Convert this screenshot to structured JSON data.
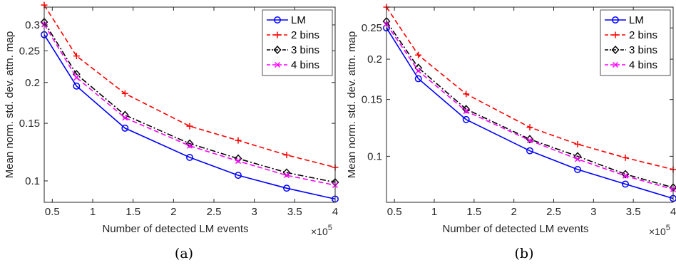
{
  "chart_data": [
    {
      "type": "line",
      "caption": "(a)",
      "xlabel": "Number of detected LM events",
      "ylabel": "Mean norm. std. dev. attn. map",
      "x_multiplier_label": "×10",
      "x_multiplier_exponent": "5",
      "yscale": "log",
      "xlim": [
        0.4,
        4.0
      ],
      "ylim": [
        0.086,
        0.34
      ],
      "xticks": [
        0.5,
        1,
        1.5,
        2,
        2.5,
        3,
        3.5,
        4
      ],
      "xtick_labels": [
        "0.5",
        "1",
        "1.5",
        "2",
        "2.5",
        "3",
        "3.5",
        "4"
      ],
      "yticks": [
        0.1,
        0.15,
        0.2,
        0.25,
        0.3
      ],
      "ytick_labels": [
        "0.1",
        "0.15",
        "0.2",
        "0.25",
        "0.3"
      ],
      "legend_position": "top-right",
      "x": [
        0.4,
        0.8,
        1.4,
        2.2,
        2.8,
        3.4,
        4.0
      ],
      "series": [
        {
          "name": "LM",
          "color": "#0000ff",
          "style": "solid",
          "marker": "circle",
          "values": [
            0.28,
            0.195,
            0.145,
            0.118,
            0.104,
            0.095,
            0.088
          ]
        },
        {
          "name": "2 bins",
          "color": "#ff0000",
          "style": "dashed",
          "marker": "plus",
          "values": [
            0.345,
            0.241,
            0.185,
            0.147,
            0.133,
            0.12,
            0.11
          ]
        },
        {
          "name": "3 bins",
          "color": "#000000",
          "style": "dashdot",
          "marker": "diamond",
          "values": [
            0.306,
            0.212,
            0.159,
            0.13,
            0.117,
            0.106,
            0.099
          ]
        },
        {
          "name": "4 bins",
          "color": "#ff00ff",
          "style": "dashed",
          "marker": "x",
          "values": [
            0.301,
            0.207,
            0.156,
            0.128,
            0.115,
            0.104,
            0.097
          ]
        }
      ]
    },
    {
      "type": "line",
      "caption": "(b)",
      "xlabel": "Number of detected LM events",
      "ylabel": "Mean norm. std. dev. attn. map",
      "x_multiplier_label": "×10",
      "x_multiplier_exponent": "5",
      "yscale": "log",
      "xlim": [
        0.4,
        4.0
      ],
      "ylim": [
        0.072,
        0.29
      ],
      "xticks": [
        0.5,
        1,
        1.5,
        2,
        2.5,
        3,
        3.5,
        4
      ],
      "xtick_labels": [
        "0.5",
        "1",
        "1.5",
        "2",
        "2.5",
        "3",
        "3.5",
        "4"
      ],
      "yticks": [
        0.1,
        0.15,
        0.2,
        0.25
      ],
      "ytick_labels": [
        "0.1",
        "0.15",
        "0.2",
        "0.25"
      ],
      "legend_position": "top-right",
      "x": [
        0.4,
        0.8,
        1.4,
        2.2,
        2.8,
        3.4,
        4.0
      ],
      "series": [
        {
          "name": "LM",
          "color": "#0000ff",
          "style": "solid",
          "marker": "circle",
          "values": [
            0.25,
            0.174,
            0.13,
            0.104,
            0.091,
            0.082,
            0.074
          ]
        },
        {
          "name": "2 bins",
          "color": "#ff0000",
          "style": "dashed",
          "marker": "plus",
          "values": [
            0.29,
            0.206,
            0.156,
            0.123,
            0.109,
            0.099,
            0.091
          ]
        },
        {
          "name": "3 bins",
          "color": "#000000",
          "style": "dashdot",
          "marker": "diamond",
          "values": [
            0.262,
            0.188,
            0.14,
            0.113,
            0.1,
            0.088,
            0.08
          ]
        },
        {
          "name": "4 bins",
          "color": "#ff00ff",
          "style": "dashed",
          "marker": "x",
          "values": [
            0.257,
            0.184,
            0.138,
            0.112,
            0.098,
            0.087,
            0.079
          ]
        }
      ]
    }
  ]
}
